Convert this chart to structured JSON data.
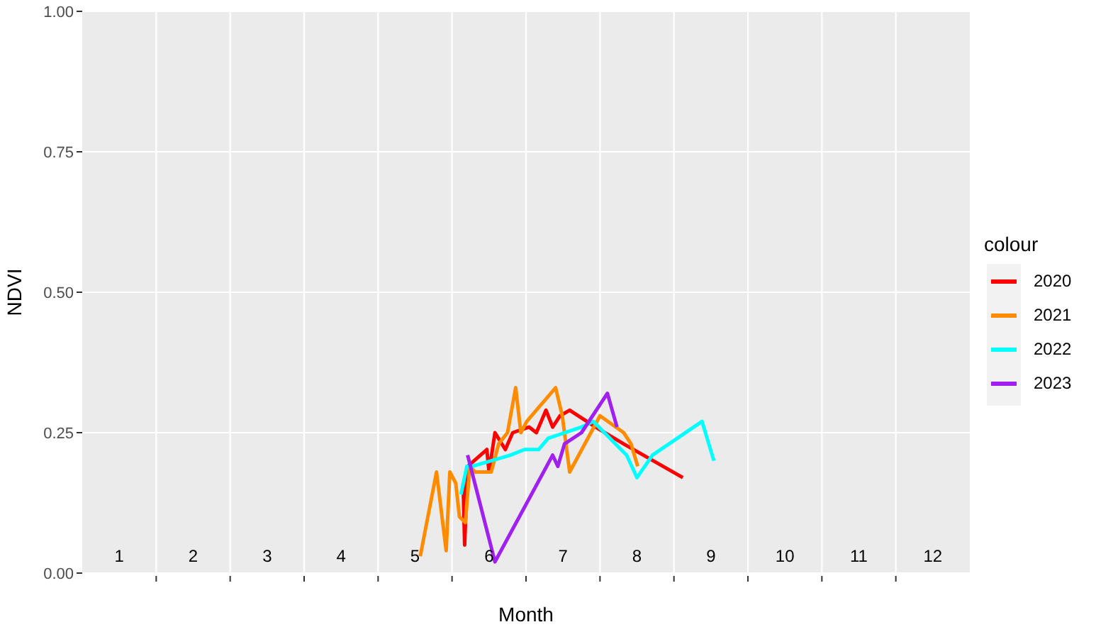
{
  "chart_data": {
    "type": "line",
    "xlabel": "Month",
    "ylabel": "NDVI",
    "legend_title": "colour",
    "legend": "right",
    "grid": true,
    "line_style": "solid",
    "marker": "none",
    "xlim": [
      0.5,
      12.5
    ],
    "xticks": [
      1,
      2,
      3,
      4,
      5,
      6,
      7,
      8,
      9,
      10,
      11,
      12,
      {
        "value": 1.5,
        "label": null
      },
      {
        "value": 2.5,
        "label": null
      },
      {
        "value": 3.5,
        "label": null
      },
      {
        "value": 4.5,
        "label": null
      },
      {
        "value": 5.5,
        "label": null
      },
      {
        "value": 6.5,
        "label": null
      },
      {
        "value": 7.5,
        "label": null
      },
      {
        "value": 8.5,
        "label": null
      },
      {
        "value": 9.5,
        "label": null
      },
      {
        "value": 10.5,
        "label": null
      },
      {
        "value": 11.5,
        "label": null
      }
    ],
    "ylim": [
      0,
      1
    ],
    "yticks": [
      {
        "value": 0,
        "label": "0.00"
      },
      {
        "value": 0.25,
        "label": "0.25"
      },
      {
        "value": 0.5,
        "label": "0.50"
      },
      {
        "value": 0.75,
        "label": "0.75"
      },
      {
        "value": 1,
        "label": "1.00"
      }
    ],
    "series": [
      {
        "name": "2020",
        "color": "#ff0000",
        "x": [
          5.65,
          5.67,
          5.71,
          5.97,
          6.0,
          6.08,
          6.22,
          6.32,
          6.54,
          6.64,
          6.77,
          6.86,
          6.96,
          7.09,
          7.44,
          7.82,
          8.62
        ],
        "values": [
          0.16,
          0.05,
          0.19,
          0.22,
          0.18,
          0.25,
          0.22,
          0.25,
          0.26,
          0.25,
          0.29,
          0.26,
          0.28,
          0.29,
          0.26,
          0.23,
          0.17
        ]
      },
      {
        "name": "2021",
        "color": "#ff8c00",
        "x": [
          5.07,
          5.29,
          5.42,
          5.47,
          5.55,
          5.6,
          5.68,
          5.74,
          5.81,
          5.96,
          6.03,
          6.13,
          6.25,
          6.36,
          6.43,
          6.51,
          6.9,
          6.99,
          7.09,
          7.5,
          7.82,
          7.92,
          8.01
        ],
        "values": [
          0.03,
          0.18,
          0.04,
          0.18,
          0.16,
          0.1,
          0.09,
          0.19,
          0.18,
          0.18,
          0.18,
          0.23,
          0.25,
          0.33,
          0.25,
          0.27,
          0.33,
          0.28,
          0.18,
          0.28,
          0.25,
          0.23,
          0.19
        ]
      },
      {
        "name": "2022",
        "color": "#00ffff",
        "x": [
          5.62,
          5.7,
          5.77,
          6.03,
          6.29,
          6.48,
          6.67,
          6.8,
          7.25,
          7.41,
          7.86,
          8.0,
          8.21,
          8.88,
          9.04
        ],
        "values": [
          0.14,
          0.19,
          0.19,
          0.2,
          0.21,
          0.22,
          0.22,
          0.24,
          0.26,
          0.27,
          0.21,
          0.17,
          0.21,
          0.27,
          0.2
        ]
      },
      {
        "name": "2023",
        "color": "#a020f0",
        "x": [
          5.71,
          6.08,
          6.86,
          6.93,
          7.02,
          7.25,
          7.6,
          7.73
        ],
        "values": [
          0.21,
          0.02,
          0.21,
          0.19,
          0.23,
          0.25,
          0.32,
          0.26
        ]
      }
    ]
  }
}
